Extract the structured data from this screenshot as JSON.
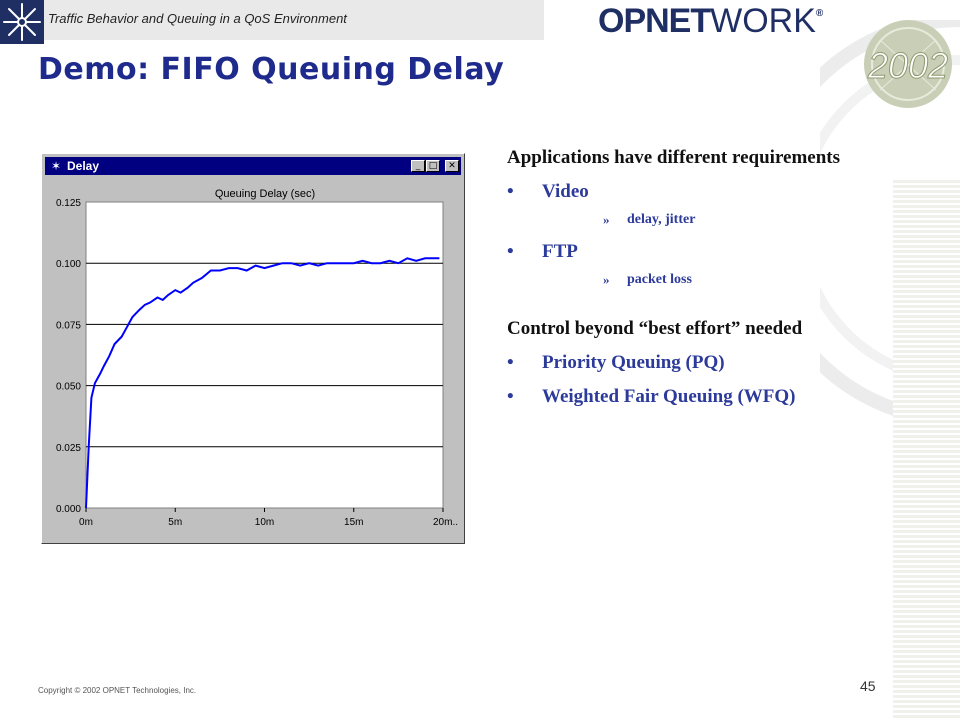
{
  "header": {
    "subtitle": "Traffic Behavior and Queuing in a QoS Environment",
    "logo_bold": "OPNET",
    "logo_thin": "WORK",
    "logo_mark": "®",
    "year_badge": "2002"
  },
  "slide": {
    "title": "Demo:  FIFO Queuing Delay",
    "page_number": "45",
    "copyright": "Copyright © 2002 OPNET Technologies, Inc."
  },
  "window": {
    "title": "Delay",
    "minimize_label": "_",
    "maximize_label": "□",
    "close_label": "✕",
    "icon": "star-icon"
  },
  "bullets": {
    "heading1": "Applications have different requirements",
    "item_video": "Video",
    "sub_video": "delay, jitter",
    "item_ftp": "FTP",
    "sub_ftp": "packet loss",
    "heading2": "Control beyond “best effort” needed",
    "item_pq": "Priority Queuing (PQ)",
    "item_wfq": "Weighted Fair Queuing (WFQ)",
    "bullet_char": "•",
    "sub_char": "»"
  },
  "colors": {
    "title": "#1e2a8c",
    "series": "#0000ff",
    "window_titlebar": "#000080"
  },
  "chart_data": {
    "type": "line",
    "title": "Queuing Delay (sec)",
    "xlabel": "",
    "ylabel": "",
    "x_ticks": [
      "0m",
      "5m",
      "10m",
      "15m",
      "20m.."
    ],
    "y_ticks": [
      "0.125",
      "0.100",
      "0.075",
      "0.050",
      "0.025",
      "0.000"
    ],
    "xlim": [
      0,
      20
    ],
    "ylim": [
      0,
      0.125
    ],
    "grid": "horizontal",
    "legend": "none",
    "series": [
      {
        "x": [
          0,
          0.15,
          0.3,
          0.5,
          0.8,
          1.0,
          1.3,
          1.6,
          2.0,
          2.3,
          2.6,
          3.0,
          3.3,
          3.6,
          4.0,
          4.3,
          4.6,
          5.0,
          5.3,
          5.7,
          6.0,
          6.5,
          7.0,
          7.5,
          8.0,
          8.5,
          9.0,
          9.5,
          10.0,
          10.5,
          11.0,
          11.5,
          12.0,
          12.5,
          13.0,
          13.5,
          14.0,
          14.5,
          15.0,
          15.5,
          16.0,
          16.5,
          17.0,
          17.5,
          18.0,
          18.5,
          19.0,
          19.5,
          19.8
        ],
        "y": [
          0.0,
          0.025,
          0.045,
          0.051,
          0.055,
          0.058,
          0.062,
          0.067,
          0.07,
          0.074,
          0.078,
          0.081,
          0.083,
          0.084,
          0.086,
          0.085,
          0.087,
          0.089,
          0.088,
          0.09,
          0.092,
          0.094,
          0.097,
          0.097,
          0.098,
          0.098,
          0.097,
          0.099,
          0.098,
          0.099,
          0.1,
          0.1,
          0.099,
          0.1,
          0.099,
          0.1,
          0.1,
          0.1,
          0.1,
          0.101,
          0.1,
          0.1,
          0.101,
          0.1,
          0.102,
          0.101,
          0.102,
          0.102,
          0.102
        ]
      }
    ]
  }
}
